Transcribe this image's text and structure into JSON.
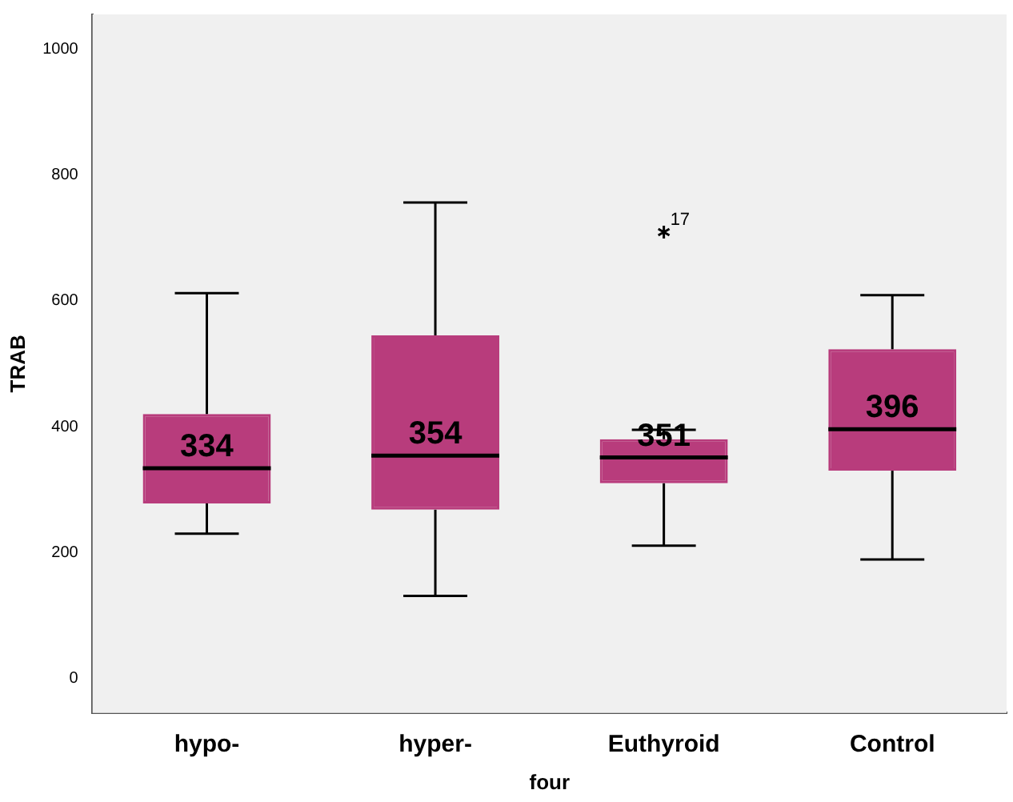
{
  "chart_data": {
    "type": "box",
    "xlabel": "four",
    "ylabel": "TRAB",
    "categories": [
      "hypo-",
      "hyper-",
      "Euthyroid",
      "Control"
    ],
    "boxes": [
      {
        "low": 230,
        "q1": 278,
        "median": 334,
        "q3": 420,
        "high": 612
      },
      {
        "low": 131,
        "q1": 268,
        "median": 354,
        "q3": 545,
        "high": 756
      },
      {
        "low": 211,
        "q1": 310,
        "median": 351,
        "q3": 380,
        "high": 395,
        "outliers": [
          709
        ]
      },
      {
        "low": 189,
        "q1": 330,
        "median": 396,
        "q3": 523,
        "high": 609
      }
    ],
    "color": "#b83c7c",
    "value_labels": [
      "334",
      "354",
      "351",
      "396"
    ],
    "marker": "star",
    "grid": false,
    "legend": false,
    "ylim": [
      -55,
      1055
    ],
    "yticks": [
      0,
      200,
      400,
      600,
      800,
      1000
    ],
    "annotations": [
      "17"
    ]
  }
}
